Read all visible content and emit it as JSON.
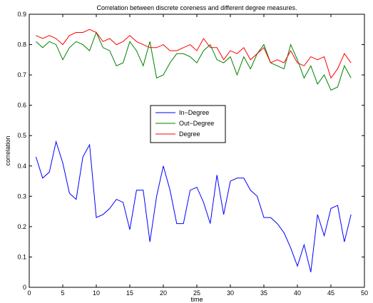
{
  "chart_data": {
    "type": "line",
    "title": "Correlation between discrete coreness and different degree measures.",
    "xlabel": "time",
    "ylabel": "correlation",
    "xlim": [
      0,
      50
    ],
    "ylim": [
      0,
      0.9
    ],
    "xticks": [
      0,
      5,
      10,
      15,
      20,
      25,
      30,
      35,
      40,
      45,
      50
    ],
    "yticks": [
      0,
      0.1,
      0.2,
      0.3,
      0.4,
      0.5,
      0.6,
      0.7,
      0.8,
      0.9
    ],
    "xtick_labels": [
      "0",
      "5",
      "10",
      "15",
      "20",
      "25",
      "30",
      "35",
      "40",
      "45",
      "50"
    ],
    "ytick_labels": [
      "0",
      "0.1",
      "0.2",
      "0.3",
      "0.4",
      "0.5",
      "0.6",
      "0.7",
      "0.8",
      "0.9"
    ],
    "grid": false,
    "legend_position": "center",
    "x": [
      1,
      2,
      3,
      4,
      5,
      6,
      7,
      8,
      9,
      10,
      11,
      12,
      13,
      14,
      15,
      16,
      17,
      18,
      19,
      20,
      21,
      22,
      23,
      24,
      25,
      26,
      27,
      28,
      29,
      30,
      31,
      32,
      33,
      34,
      35,
      36,
      37,
      38,
      39,
      40,
      41,
      42,
      43,
      44,
      45,
      46,
      47,
      48
    ],
    "series": [
      {
        "name": "In−Degree",
        "color": "#0000ff",
        "values": [
          0.43,
          0.36,
          0.38,
          0.48,
          0.41,
          0.31,
          0.29,
          0.43,
          0.47,
          0.23,
          0.24,
          0.26,
          0.29,
          0.28,
          0.19,
          0.32,
          0.32,
          0.15,
          0.3,
          0.4,
          0.32,
          0.21,
          0.21,
          0.32,
          0.33,
          0.28,
          0.21,
          0.37,
          0.24,
          0.35,
          0.36,
          0.36,
          0.32,
          0.3,
          0.23,
          0.23,
          0.21,
          0.18,
          0.13,
          0.07,
          0.14,
          0.05,
          0.24,
          0.17,
          0.26,
          0.27,
          0.15,
          0.24
        ]
      },
      {
        "name": "Out−Degree",
        "color": "#008000",
        "values": [
          0.81,
          0.79,
          0.81,
          0.8,
          0.75,
          0.79,
          0.81,
          0.8,
          0.78,
          0.84,
          0.79,
          0.78,
          0.73,
          0.74,
          0.81,
          0.78,
          0.73,
          0.81,
          0.69,
          0.7,
          0.74,
          0.77,
          0.77,
          0.76,
          0.74,
          0.78,
          0.8,
          0.75,
          0.74,
          0.76,
          0.7,
          0.76,
          0.72,
          0.77,
          0.8,
          0.74,
          0.73,
          0.72,
          0.8,
          0.75,
          0.69,
          0.73,
          0.67,
          0.7,
          0.65,
          0.66,
          0.73,
          0.69
        ]
      },
      {
        "name": "Degree",
        "color": "#ff0000",
        "values": [
          0.83,
          0.82,
          0.83,
          0.82,
          0.8,
          0.83,
          0.84,
          0.84,
          0.85,
          0.84,
          0.81,
          0.82,
          0.8,
          0.81,
          0.83,
          0.81,
          0.8,
          0.79,
          0.79,
          0.8,
          0.78,
          0.78,
          0.79,
          0.8,
          0.78,
          0.82,
          0.79,
          0.79,
          0.75,
          0.78,
          0.77,
          0.79,
          0.75,
          0.77,
          0.79,
          0.74,
          0.75,
          0.74,
          0.78,
          0.74,
          0.73,
          0.76,
          0.75,
          0.76,
          0.69,
          0.72,
          0.77,
          0.74
        ]
      }
    ]
  }
}
